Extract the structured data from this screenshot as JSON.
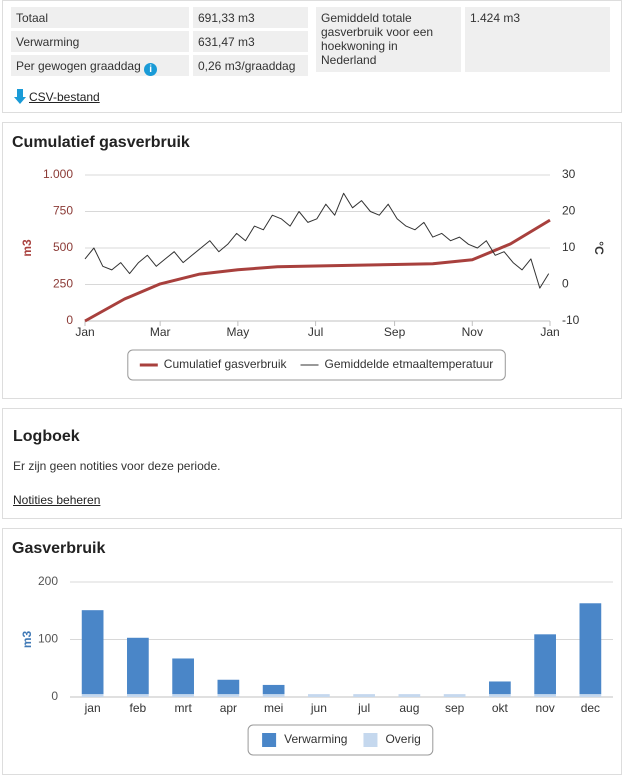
{
  "summary": {
    "rows": [
      [
        "Totaal",
        "691,33 m3"
      ],
      [
        "Verwarming",
        "631,47 m3"
      ],
      [
        "Per gewogen graaddag",
        "0,26 m3/graaddag"
      ]
    ],
    "average": {
      "label": "Gemiddeld totale gasverbruik voor een hoekwoning in Nederland",
      "value": "1.424 m3"
    },
    "csv_link": "CSV-bestand"
  },
  "logbook": {
    "title": "Logboek",
    "text": "Er zijn geen notities voor deze periode.",
    "link": "Notities beheren"
  },
  "chart_data": [
    {
      "type": "line",
      "title": "Cumulatief gasverbruik",
      "ylabel": "m3",
      "y2label": "°C",
      "xlim": [
        0,
        365
      ],
      "xticks": [
        {
          "value": 0,
          "label": "Jan"
        },
        {
          "value": 59,
          "label": "Mar"
        },
        {
          "value": 120,
          "label": "May"
        },
        {
          "value": 181,
          "label": "Jul"
        },
        {
          "value": 243,
          "label": "Sep"
        },
        {
          "value": 304,
          "label": "Nov"
        },
        {
          "value": 365,
          "label": "Jan"
        }
      ],
      "ylim": [
        0,
        1000
      ],
      "yticks": [
        0,
        250,
        500,
        750,
        {
          "value": 1000,
          "label": "1.000"
        }
      ],
      "y2lim": [
        -10,
        30
      ],
      "y2ticks": [
        -10,
        0,
        10,
        20,
        30
      ],
      "grid": true,
      "legend": "bottom",
      "series": [
        {
          "name": "Cumulatief gasverbruik",
          "color": "#a8403d",
          "x": [
            0,
            31,
            59,
            90,
            120,
            151,
            181,
            212,
            243,
            273,
            304,
            334,
            365
          ],
          "values": [
            0,
            151,
            254,
            321,
            351,
            372,
            377,
            382,
            387,
            392,
            419,
            528,
            691
          ]
        },
        {
          "name": "Gemiddelde etmaaltemperatuur",
          "color": "#333333",
          "axis": "y2",
          "x": [
            0,
            7,
            14,
            21,
            28,
            35,
            42,
            49,
            56,
            63,
            70,
            77,
            84,
            91,
            98,
            105,
            112,
            119,
            126,
            133,
            140,
            147,
            154,
            161,
            168,
            175,
            182,
            189,
            196,
            203,
            210,
            217,
            224,
            231,
            238,
            245,
            252,
            259,
            266,
            273,
            280,
            287,
            294,
            301,
            308,
            315,
            322,
            329,
            336,
            343,
            350,
            357,
            364
          ],
          "values": [
            7,
            10,
            5,
            4,
            6,
            3,
            6,
            8,
            5,
            7,
            9,
            6,
            8,
            10,
            12,
            9,
            11,
            14,
            12,
            16,
            15,
            19,
            18,
            16,
            20,
            17,
            18,
            22,
            19,
            25,
            21,
            23,
            20,
            19,
            22,
            18,
            16,
            15,
            17,
            13,
            14,
            12,
            13,
            11,
            10,
            12,
            8,
            9,
            6,
            4,
            7,
            -1,
            3
          ]
        }
      ]
    },
    {
      "type": "bar",
      "stacked": true,
      "title": "Gasverbruik",
      "ylabel": "m3",
      "categories": [
        "jan",
        "feb",
        "mrt",
        "apr",
        "mei",
        "jun",
        "jul",
        "aug",
        "sep",
        "okt",
        "nov",
        "dec"
      ],
      "ylim": [
        0,
        200
      ],
      "yticks": [
        0,
        100,
        200
      ],
      "grid": true,
      "legend": "bottom",
      "series": [
        {
          "name": "Verwarming",
          "color": "#4a86c8",
          "values": [
            146,
            98,
            62,
            25,
            16,
            0,
            0,
            0,
            0,
            22,
            104,
            158
          ]
        },
        {
          "name": "Overig",
          "color": "#c5d8ee",
          "values": [
            5,
            5,
            5,
            5,
            5,
            5,
            5,
            5,
            5,
            5,
            5,
            5
          ]
        }
      ]
    }
  ]
}
